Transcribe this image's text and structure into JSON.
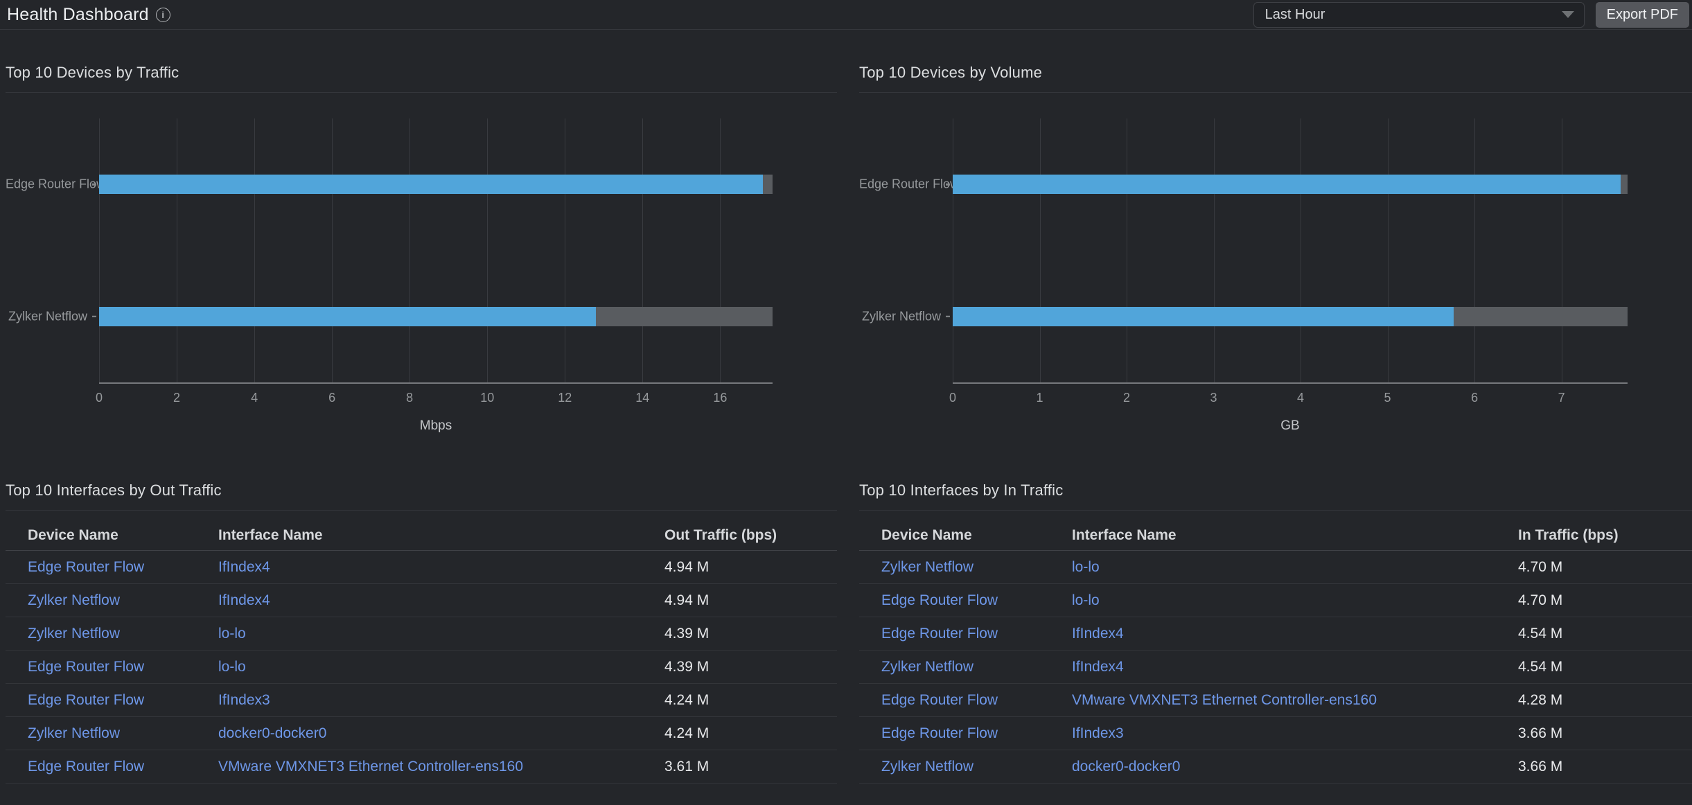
{
  "header": {
    "title": "Health Dashboard",
    "time_range_value": "Last Hour",
    "export_label": "Export PDF"
  },
  "colors": {
    "background": "#24262a",
    "bar_primary_blue": "#51a5da",
    "bar_secondary_gray": "#595c60",
    "link_blue": "#6e97e8"
  },
  "chart_data": [
    {
      "type": "bar",
      "orientation": "horizontal",
      "title": "Top 10 Devices by Traffic",
      "xlabel": "Mbps",
      "ticks": [
        0,
        2,
        4,
        6,
        8,
        10,
        12,
        14,
        16
      ],
      "xmax": 17.35,
      "categories": [
        "Edge Router Flow",
        "Zylker Netflow"
      ],
      "series": [
        {
          "name": "primary",
          "color": "#51a5da",
          "values": [
            17.1,
            12.8
          ]
        },
        {
          "name": "secondary",
          "color": "#595c60",
          "values": [
            0.25,
            4.55
          ]
        }
      ],
      "grid": true,
      "legend": false
    },
    {
      "type": "bar",
      "orientation": "horizontal",
      "title": "Top 10 Devices by Volume",
      "xlabel": "GB",
      "ticks": [
        0,
        1,
        2,
        3,
        4,
        5,
        6,
        7
      ],
      "xmax": 7.76,
      "categories": [
        "Edge Router Flow",
        "Zylker Netflow"
      ],
      "series": [
        {
          "name": "primary",
          "color": "#51a5da",
          "values": [
            7.68,
            5.76
          ]
        },
        {
          "name": "secondary",
          "color": "#595c60",
          "values": [
            0.08,
            2.0
          ]
        }
      ],
      "grid": true,
      "legend": false
    }
  ],
  "tables": [
    {
      "title": "Top 10 Interfaces by Out Traffic",
      "columns": [
        "Device Name",
        "Interface Name",
        "Out Traffic (bps)"
      ],
      "rows": [
        [
          "Edge Router Flow",
          "IfIndex4",
          "4.94 M"
        ],
        [
          "Zylker Netflow",
          "IfIndex4",
          "4.94 M"
        ],
        [
          "Zylker Netflow",
          "lo-lo",
          "4.39 M"
        ],
        [
          "Edge Router Flow",
          "lo-lo",
          "4.39 M"
        ],
        [
          "Edge Router Flow",
          "IfIndex3",
          "4.24 M"
        ],
        [
          "Zylker Netflow",
          "docker0-docker0",
          "4.24 M"
        ],
        [
          "Edge Router Flow",
          "VMware VMXNET3 Ethernet Controller-ens160",
          "3.61 M"
        ]
      ]
    },
    {
      "title": "Top 10 Interfaces by In Traffic",
      "columns": [
        "Device Name",
        "Interface Name",
        "In Traffic (bps)"
      ],
      "rows": [
        [
          "Zylker Netflow",
          "lo-lo",
          "4.70 M"
        ],
        [
          "Edge Router Flow",
          "lo-lo",
          "4.70 M"
        ],
        [
          "Edge Router Flow",
          "IfIndex4",
          "4.54 M"
        ],
        [
          "Zylker Netflow",
          "IfIndex4",
          "4.54 M"
        ],
        [
          "Edge Router Flow",
          "VMware VMXNET3 Ethernet Controller-ens160",
          "4.28 M"
        ],
        [
          "Edge Router Flow",
          "IfIndex3",
          "3.66 M"
        ],
        [
          "Zylker Netflow",
          "docker0-docker0",
          "3.66 M"
        ]
      ]
    }
  ]
}
